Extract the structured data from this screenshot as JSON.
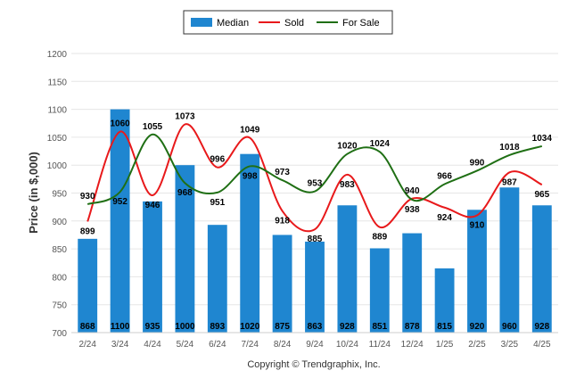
{
  "chart_data": {
    "type": "bar",
    "categories": [
      "2/24",
      "3/24",
      "4/24",
      "5/24",
      "6/24",
      "7/24",
      "8/24",
      "9/24",
      "10/24",
      "11/24",
      "12/24",
      "1/25",
      "2/25",
      "3/25",
      "4/25"
    ],
    "series": [
      {
        "name": "Median",
        "kind": "bar",
        "color": "#1f86d0",
        "values": [
          868,
          1100,
          935,
          1000,
          893,
          1020,
          875,
          863,
          928,
          851,
          878,
          815,
          920,
          960,
          928
        ]
      },
      {
        "name": "Sold",
        "kind": "line",
        "color": "#e8191b",
        "values": [
          899,
          1060,
          946,
          1073,
          996,
          1049,
          918,
          885,
          983,
          889,
          940,
          924,
          910,
          987,
          965
        ]
      },
      {
        "name": "For Sale",
        "kind": "line",
        "color": "#1f6f14",
        "values": [
          930,
          952,
          1055,
          968,
          951,
          998,
          973,
          953,
          1020,
          1024,
          938,
          966,
          990,
          1018,
          1034
        ]
      }
    ],
    "ylabel": "Price (in $,000)",
    "ylim": [
      700,
      1200
    ],
    "yticks": [
      700,
      750,
      800,
      850,
      900,
      950,
      1000,
      1050,
      1100,
      1150,
      1200
    ],
    "grid": true,
    "legend_position": "top-center",
    "footer": "Copyright © Trendgraphix, Inc."
  }
}
